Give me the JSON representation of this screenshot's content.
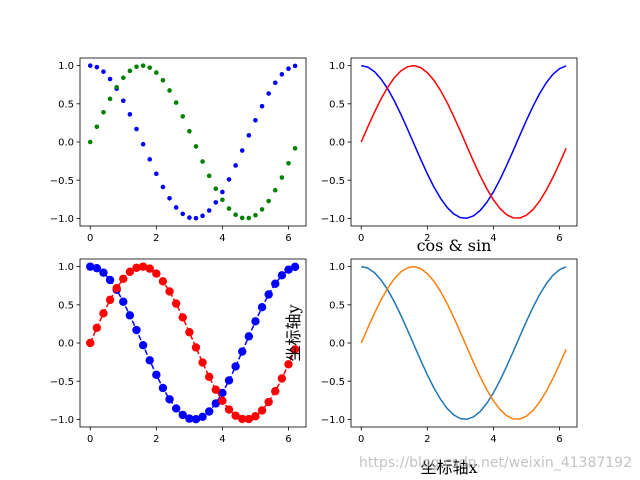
{
  "figure": {
    "background": "#ffffff",
    "watermark": "https://blog.csdn.net/weixin_41387192"
  },
  "chart_data": [
    {
      "type": "scatter",
      "position": "top-left",
      "title": "",
      "xlabel": "",
      "ylabel": "",
      "xlim": [
        -0.31,
        6.53
      ],
      "ylim": [
        -1.1,
        1.1
      ],
      "xticks": [
        0,
        2,
        4,
        6
      ],
      "yticks": [
        -1.0,
        -0.5,
        0.0,
        0.5,
        1.0
      ],
      "xtick_labels": [
        "0",
        "2",
        "4",
        "6"
      ],
      "ytick_labels": [
        "−1.0",
        "−0.5",
        "0.0",
        "0.5",
        "1.0"
      ],
      "series": [
        {
          "func": "cos",
          "color": "#0000ff",
          "style": "dots",
          "x": [
            0.0,
            0.2,
            0.4,
            0.6,
            0.8,
            1.0,
            1.2,
            1.4,
            1.6,
            1.8,
            2.0,
            2.2,
            2.4,
            2.6,
            2.8,
            3.0,
            3.2,
            3.4,
            3.6,
            3.8,
            4.0,
            4.2,
            4.4,
            4.6,
            4.8,
            5.0,
            5.2,
            5.4,
            5.6,
            5.8,
            6.0,
            6.2
          ],
          "y": [
            1.0,
            0.98,
            0.921,
            0.825,
            0.697,
            0.54,
            0.362,
            0.17,
            -0.029,
            -0.227,
            -0.416,
            -0.589,
            -0.737,
            -0.857,
            -0.942,
            -0.99,
            -0.998,
            -0.967,
            -0.897,
            -0.791,
            -0.654,
            -0.49,
            -0.307,
            -0.112,
            0.087,
            0.284,
            0.469,
            0.635,
            0.776,
            0.886,
            0.96,
            0.997
          ]
        },
        {
          "func": "sin",
          "color": "#008000",
          "style": "dots",
          "x": [
            0.0,
            0.2,
            0.4,
            0.6,
            0.8,
            1.0,
            1.2,
            1.4,
            1.6,
            1.8,
            2.0,
            2.2,
            2.4,
            2.6,
            2.8,
            3.0,
            3.2,
            3.4,
            3.6,
            3.8,
            4.0,
            4.2,
            4.4,
            4.6,
            4.8,
            5.0,
            5.2,
            5.4,
            5.6,
            5.8,
            6.0,
            6.2
          ],
          "y": [
            0.0,
            0.199,
            0.389,
            0.565,
            0.717,
            0.841,
            0.932,
            0.985,
            1.0,
            0.974,
            0.909,
            0.808,
            0.675,
            0.516,
            0.335,
            0.141,
            -0.058,
            -0.256,
            -0.443,
            -0.612,
            -0.757,
            -0.872,
            -0.952,
            -0.994,
            -0.996,
            -0.959,
            -0.883,
            -0.773,
            -0.631,
            -0.465,
            -0.279,
            -0.083
          ]
        }
      ]
    },
    {
      "type": "line",
      "position": "top-right",
      "title": "",
      "xlabel": "",
      "ylabel": "",
      "xlim": [
        -0.31,
        6.53
      ],
      "ylim": [
        -1.1,
        1.1
      ],
      "xticks": [
        0,
        2,
        4,
        6
      ],
      "yticks": [
        -1.0,
        -0.5,
        0.0,
        0.5,
        1.0
      ],
      "xtick_labels": [
        "0",
        "2",
        "4",
        "6"
      ],
      "ytick_labels": [
        "−1.0",
        "−0.5",
        "0.0",
        "0.5",
        "1.0"
      ],
      "series": [
        {
          "func": "cos",
          "color": "#0000ff",
          "style": "line",
          "x": [
            0.0,
            0.2,
            0.4,
            0.6,
            0.8,
            1.0,
            1.2,
            1.4,
            1.6,
            1.8,
            2.0,
            2.2,
            2.4,
            2.6,
            2.8,
            3.0,
            3.2,
            3.4,
            3.6,
            3.8,
            4.0,
            4.2,
            4.4,
            4.6,
            4.8,
            5.0,
            5.2,
            5.4,
            5.6,
            5.8,
            6.0,
            6.2
          ],
          "y": [
            1.0,
            0.98,
            0.921,
            0.825,
            0.697,
            0.54,
            0.362,
            0.17,
            -0.029,
            -0.227,
            -0.416,
            -0.589,
            -0.737,
            -0.857,
            -0.942,
            -0.99,
            -0.998,
            -0.967,
            -0.897,
            -0.791,
            -0.654,
            -0.49,
            -0.307,
            -0.112,
            0.087,
            0.284,
            0.469,
            0.635,
            0.776,
            0.886,
            0.96,
            0.997
          ]
        },
        {
          "func": "sin",
          "color": "#ff0000",
          "style": "line",
          "x": [
            0.0,
            0.2,
            0.4,
            0.6,
            0.8,
            1.0,
            1.2,
            1.4,
            1.6,
            1.8,
            2.0,
            2.2,
            2.4,
            2.6,
            2.8,
            3.0,
            3.2,
            3.4,
            3.6,
            3.8,
            4.0,
            4.2,
            4.4,
            4.6,
            4.8,
            5.0,
            5.2,
            5.4,
            5.6,
            5.8,
            6.0,
            6.2
          ],
          "y": [
            0.0,
            0.199,
            0.389,
            0.565,
            0.717,
            0.841,
            0.932,
            0.985,
            1.0,
            0.974,
            0.909,
            0.808,
            0.675,
            0.516,
            0.335,
            0.141,
            -0.058,
            -0.256,
            -0.443,
            -0.612,
            -0.757,
            -0.872,
            -0.952,
            -0.994,
            -0.996,
            -0.959,
            -0.883,
            -0.773,
            -0.631,
            -0.465,
            -0.279,
            -0.083
          ]
        }
      ]
    },
    {
      "type": "line",
      "position": "bottom-left",
      "title": "",
      "xlabel": "",
      "ylabel": "",
      "xlim": [
        -0.31,
        6.53
      ],
      "ylim": [
        -1.1,
        1.1
      ],
      "xticks": [
        0,
        2,
        4,
        6
      ],
      "yticks": [
        -1.0,
        -0.5,
        0.0,
        0.5,
        1.0
      ],
      "xtick_labels": [
        "0",
        "2",
        "4",
        "6"
      ],
      "ytick_labels": [
        "−1.0",
        "−0.5",
        "0.0",
        "0.5",
        "1.0"
      ],
      "series": [
        {
          "func": "cos",
          "color": "#0000ff",
          "style": "dashed-line-with-circle-markers",
          "x": [
            0.0,
            0.2,
            0.4,
            0.6,
            0.8,
            1.0,
            1.2,
            1.4,
            1.6,
            1.8,
            2.0,
            2.2,
            2.4,
            2.6,
            2.8,
            3.0,
            3.2,
            3.4,
            3.6,
            3.8,
            4.0,
            4.2,
            4.4,
            4.6,
            4.8,
            5.0,
            5.2,
            5.4,
            5.6,
            5.8,
            6.0,
            6.2
          ],
          "y": [
            1.0,
            0.98,
            0.921,
            0.825,
            0.697,
            0.54,
            0.362,
            0.17,
            -0.029,
            -0.227,
            -0.416,
            -0.589,
            -0.737,
            -0.857,
            -0.942,
            -0.99,
            -0.998,
            -0.967,
            -0.897,
            -0.791,
            -0.654,
            -0.49,
            -0.307,
            -0.112,
            0.087,
            0.284,
            0.469,
            0.635,
            0.776,
            0.886,
            0.96,
            0.997
          ]
        },
        {
          "func": "sin",
          "color": "#ff0000",
          "style": "dashed-line-with-circle-markers",
          "x": [
            0.0,
            0.2,
            0.4,
            0.6,
            0.8,
            1.0,
            1.2,
            1.4,
            1.6,
            1.8,
            2.0,
            2.2,
            2.4,
            2.6,
            2.8,
            3.0,
            3.2,
            3.4,
            3.6,
            3.8,
            4.0,
            4.2,
            4.4,
            4.6,
            4.8,
            5.0,
            5.2,
            5.4,
            5.6,
            5.8,
            6.0,
            6.2
          ],
          "y": [
            0.0,
            0.199,
            0.389,
            0.565,
            0.717,
            0.841,
            0.932,
            0.985,
            1.0,
            0.974,
            0.909,
            0.808,
            0.675,
            0.516,
            0.335,
            0.141,
            -0.058,
            -0.256,
            -0.443,
            -0.612,
            -0.757,
            -0.872,
            -0.952,
            -0.994,
            -0.996,
            -0.959,
            -0.883,
            -0.773,
            -0.631,
            -0.465,
            -0.279,
            -0.083
          ]
        }
      ]
    },
    {
      "type": "line",
      "position": "bottom-right",
      "title": "cos & sin",
      "xlabel": "坐标轴x",
      "ylabel": "坐标轴y",
      "xlim": [
        -0.31,
        6.53
      ],
      "ylim": [
        -1.1,
        1.1
      ],
      "xticks": [
        0,
        2,
        4,
        6
      ],
      "yticks": [
        -1.0,
        -0.5,
        0.0,
        0.5,
        1.0
      ],
      "xtick_labels": [
        "0",
        "2",
        "4",
        "6"
      ],
      "ytick_labels": [
        "−1.0",
        "−0.5",
        "0.0",
        "0.5",
        "1.0"
      ],
      "series": [
        {
          "func": "cos",
          "color": "#1f77b4",
          "style": "line",
          "x": [
            0.0,
            0.2,
            0.4,
            0.6,
            0.8,
            1.0,
            1.2,
            1.4,
            1.6,
            1.8,
            2.0,
            2.2,
            2.4,
            2.6,
            2.8,
            3.0,
            3.2,
            3.4,
            3.6,
            3.8,
            4.0,
            4.2,
            4.4,
            4.6,
            4.8,
            5.0,
            5.2,
            5.4,
            5.6,
            5.8,
            6.0,
            6.2
          ],
          "y": [
            1.0,
            0.98,
            0.921,
            0.825,
            0.697,
            0.54,
            0.362,
            0.17,
            -0.029,
            -0.227,
            -0.416,
            -0.589,
            -0.737,
            -0.857,
            -0.942,
            -0.99,
            -0.998,
            -0.967,
            -0.897,
            -0.791,
            -0.654,
            -0.49,
            -0.307,
            -0.112,
            0.087,
            0.284,
            0.469,
            0.635,
            0.776,
            0.886,
            0.96,
            0.997
          ]
        },
        {
          "func": "sin",
          "color": "#ff7f0e",
          "style": "line",
          "x": [
            0.0,
            0.2,
            0.4,
            0.6,
            0.8,
            1.0,
            1.2,
            1.4,
            1.6,
            1.8,
            2.0,
            2.2,
            2.4,
            2.6,
            2.8,
            3.0,
            3.2,
            3.4,
            3.6,
            3.8,
            4.0,
            4.2,
            4.4,
            4.6,
            4.8,
            5.0,
            5.2,
            5.4,
            5.6,
            5.8,
            6.0,
            6.2
          ],
          "y": [
            0.0,
            0.199,
            0.389,
            0.565,
            0.717,
            0.841,
            0.932,
            0.985,
            1.0,
            0.974,
            0.909,
            0.808,
            0.675,
            0.516,
            0.335,
            0.141,
            -0.058,
            -0.256,
            -0.443,
            -0.612,
            -0.757,
            -0.872,
            -0.952,
            -0.994,
            -0.996,
            -0.959,
            -0.883,
            -0.773,
            -0.631,
            -0.465,
            -0.279,
            -0.083
          ]
        }
      ]
    }
  ]
}
